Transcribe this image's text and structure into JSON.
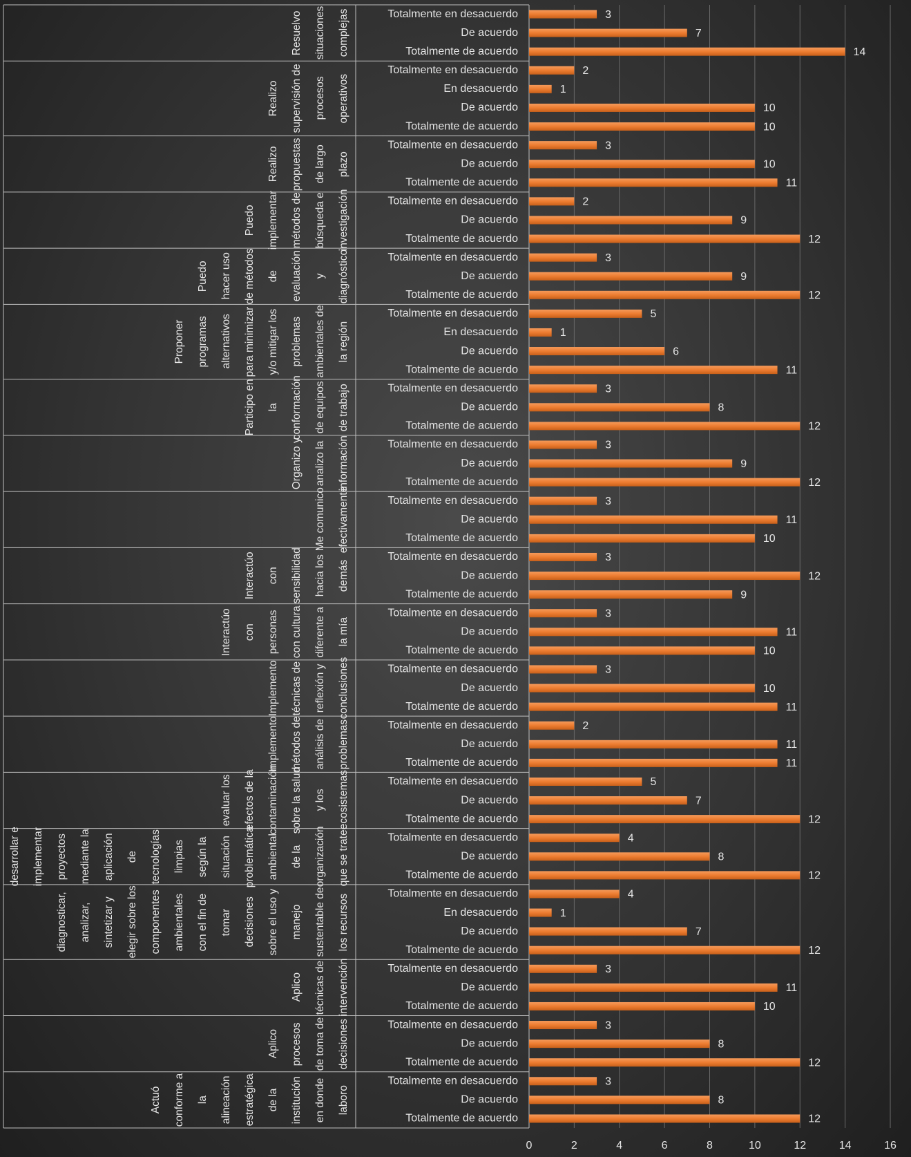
{
  "chart_data": {
    "type": "bar",
    "color": "#ed7d31",
    "xlim": [
      0,
      16
    ],
    "xticks": [
      0,
      2,
      4,
      6,
      8,
      10,
      12,
      14,
      16
    ],
    "grid": true,
    "groups": [
      {
        "label": "Resuelvo situaciones complejas",
        "categories": [
          "Totalmente en desacuerdo",
          "De acuerdo",
          "Totalmente de acuerdo"
        ],
        "values": [
          3,
          7,
          14
        ]
      },
      {
        "label": "Realizo supervisión de procesos operativos",
        "categories": [
          "Totalmente en desacuerdo",
          "En desacuerdo",
          "De acuerdo",
          "Totalmente de acuerdo"
        ],
        "values": [
          2,
          1,
          10,
          10
        ]
      },
      {
        "label": "Realizo propuestas de largo plazo",
        "categories": [
          "Totalmente en desacuerdo",
          "De acuerdo",
          "Totalmente de acuerdo"
        ],
        "values": [
          3,
          10,
          11
        ]
      },
      {
        "label": "Puedo implementar métodos de búsqueda e investigación",
        "categories": [
          "Totalmente en desacuerdo",
          "De acuerdo",
          "Totalmente de acuerdo"
        ],
        "values": [
          2,
          9,
          12
        ]
      },
      {
        "label": "Puedo hacer uso de métodos de evaluación y diagnóstico",
        "categories": [
          "Totalmente en desacuerdo",
          "De acuerdo",
          "Totalmente de acuerdo"
        ],
        "values": [
          3,
          9,
          12
        ]
      },
      {
        "label": "Proponer programas alternativos para minimizar y/o mitigar los problemas ambientales de la región",
        "categories": [
          "Totalmente en desacuerdo",
          "En desacuerdo",
          "De acuerdo",
          "Totalmente de acuerdo"
        ],
        "values": [
          5,
          1,
          6,
          11
        ]
      },
      {
        "label": "Participo en la conformación de equipos de trabajo",
        "categories": [
          "Totalmente en desacuerdo",
          "De acuerdo",
          "Totalmente de acuerdo"
        ],
        "values": [
          3,
          8,
          12
        ]
      },
      {
        "label": "Organizo y analizo la información",
        "categories": [
          "Totalmente en desacuerdo",
          "De acuerdo",
          "Totalmente de acuerdo"
        ],
        "values": [
          3,
          9,
          12
        ]
      },
      {
        "label": "Me comunico efectivamente",
        "categories": [
          "Totalmente en desacuerdo",
          "De acuerdo",
          "Totalmente de acuerdo"
        ],
        "values": [
          3,
          11,
          10
        ]
      },
      {
        "label": "Interactúo con sensibilidad hacia los demás",
        "categories": [
          "Totalmente en desacuerdo",
          "De acuerdo",
          "Totalmente de acuerdo"
        ],
        "values": [
          3,
          12,
          9
        ]
      },
      {
        "label": "Interactúo con personas con cultura diferente a la mía",
        "categories": [
          "Totalmente en desacuerdo",
          "De acuerdo",
          "Totalmente de acuerdo"
        ],
        "values": [
          3,
          11,
          10
        ]
      },
      {
        "label": "Implemento técnicas de reflexión y conclusiones",
        "categories": [
          "Totalmente en desacuerdo",
          "De acuerdo",
          "Totalmente de acuerdo"
        ],
        "values": [
          3,
          10,
          11
        ]
      },
      {
        "label": "Implemento métodos de análisis de problemas",
        "categories": [
          "Totalmente en desacuerdo",
          "De acuerdo",
          "Totalmente de acuerdo"
        ],
        "values": [
          2,
          11,
          11
        ]
      },
      {
        "label": "evaluar los efectos de la contaminación sobre la salud y los ecosistemas",
        "categories": [
          "Totalmente en desacuerdo",
          "De acuerdo",
          "Totalmente de acuerdo"
        ],
        "values": [
          5,
          7,
          12
        ]
      },
      {
        "label": "Diseñar, desarrollar e implementar proyectos mediante la aplicación de tecnologías limpias según la situación problemática ambiental de la organización que se trate.",
        "categories": [
          "Totalmente en desacuerdo",
          "De acuerdo",
          "Totalmente de acuerdo"
        ],
        "values": [
          4,
          8,
          12
        ]
      },
      {
        "label": "diagnosticar, analizar, sintetizar y elegir sobre los componentes ambientales con el fin de tomar decisiones sobre el uso y manejo sustentable de los recursos",
        "categories": [
          "Totalmente en desacuerdo",
          "En desacuerdo",
          "De acuerdo",
          "Totalmente de acuerdo"
        ],
        "values": [
          4,
          1,
          7,
          12
        ]
      },
      {
        "label": "Aplico técnicas de intervención",
        "categories": [
          "Totalmente en desacuerdo",
          "De acuerdo",
          "Totalmente de acuerdo"
        ],
        "values": [
          3,
          11,
          10
        ]
      },
      {
        "label": "Aplico procesos de toma de decisiones",
        "categories": [
          "Totalmente en desacuerdo",
          "De acuerdo",
          "Totalmente de acuerdo"
        ],
        "values": [
          3,
          8,
          12
        ]
      },
      {
        "label": "Actuó conforme a la alineación estratégica de la institución en donde laboro",
        "categories": [
          "Totalmente en desacuerdo",
          "De acuerdo",
          "Totalmente de acuerdo"
        ],
        "values": [
          3,
          8,
          12
        ]
      }
    ]
  }
}
